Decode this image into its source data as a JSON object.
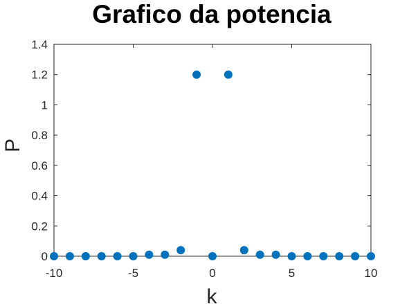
{
  "chart_data": {
    "type": "scatter",
    "title": "Grafico da potencia",
    "xlabel": "k",
    "ylabel": "P",
    "xlim": [
      -10,
      10
    ],
    "ylim": [
      0,
      1.4
    ],
    "xticks": [
      -10,
      -5,
      0,
      5,
      10
    ],
    "yticks": [
      0,
      0.2,
      0.4,
      0.6,
      0.8,
      1,
      1.2,
      1.4
    ],
    "xtick_labels": [
      "-10",
      "-5",
      "0",
      "5",
      "10"
    ],
    "ytick_labels": [
      "0",
      "0.2",
      "0.4",
      "0.6",
      "0.8",
      "1",
      "1.2",
      "1.4"
    ],
    "grid": false,
    "marker_color": "#0072BD",
    "axis_color": "#262626",
    "x": [
      -10,
      -9,
      -8,
      -7,
      -6,
      -5,
      -4,
      -3,
      -2,
      -1,
      0,
      1,
      2,
      3,
      4,
      5,
      6,
      7,
      8,
      9,
      10
    ],
    "y": [
      0,
      0,
      0,
      0,
      0,
      0,
      0.01,
      0.01,
      0.04,
      1.2,
      0,
      1.2,
      0.04,
      0.01,
      0.01,
      0,
      0,
      0,
      0,
      0,
      0
    ]
  }
}
